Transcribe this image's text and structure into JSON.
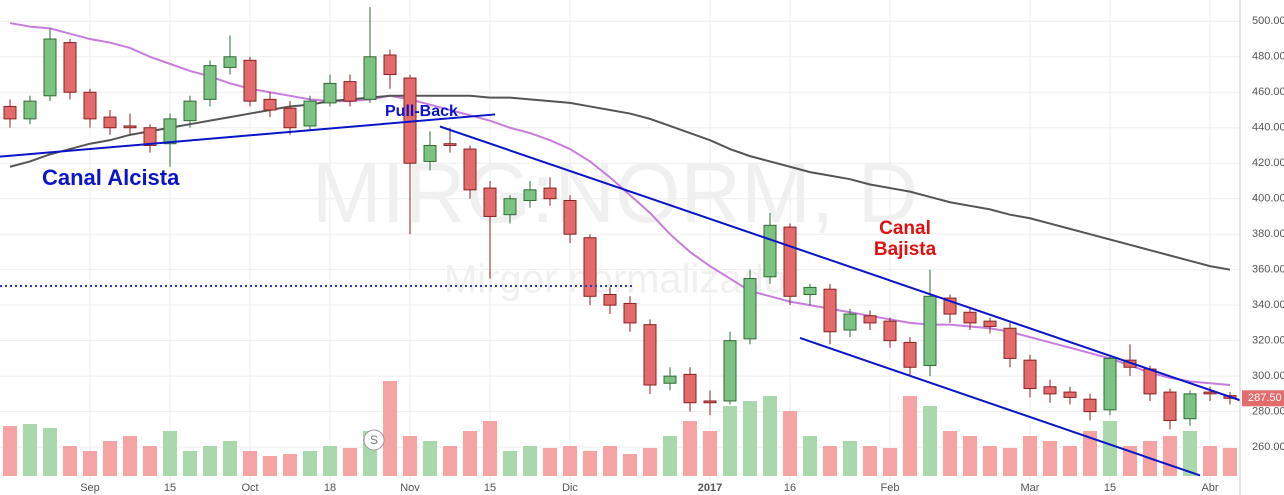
{
  "chart_data": {
    "type": "candlestick",
    "watermark": "MIRG:NORM, D",
    "subtitle": "Mirgor normalizado",
    "categories": [
      null,
      null,
      null,
      null,
      "Sep",
      null,
      null,
      null,
      "15",
      null,
      null,
      null,
      "Oct",
      null,
      null,
      null,
      "18",
      null,
      null,
      null,
      "Nov",
      null,
      null,
      null,
      "15",
      null,
      null,
      null,
      "Dic",
      null,
      null,
      null,
      null,
      null,
      null,
      "2017",
      null,
      null,
      null,
      "16",
      null,
      null,
      null,
      null,
      "Feb",
      null,
      null,
      null,
      null,
      null,
      null,
      "Mar",
      null,
      null,
      null,
      "15",
      null,
      null,
      null,
      null,
      "Abr",
      null
    ],
    "open": [
      452,
      445,
      458,
      488,
      460,
      446,
      441,
      440,
      431,
      444,
      456,
      474,
      478,
      456,
      451,
      441,
      454,
      466,
      456,
      481,
      468,
      421,
      431,
      428,
      406,
      391,
      399,
      406,
      399,
      378,
      346,
      341,
      329,
      296,
      301,
      286,
      286,
      321,
      356,
      384,
      346,
      349,
      326,
      334,
      331,
      319,
      306,
      344,
      336,
      331,
      327,
      309,
      294,
      291,
      287,
      281,
      309,
      304,
      291,
      276,
      291,
      289
    ],
    "high": [
      456,
      458,
      496,
      490,
      462,
      450,
      448,
      442,
      448,
      458,
      478,
      492,
      480,
      460,
      455,
      458,
      470,
      470,
      508,
      484,
      470,
      438,
      440,
      430,
      410,
      402,
      410,
      412,
      402,
      380,
      350,
      345,
      332,
      305,
      305,
      292,
      325,
      360,
      392,
      386,
      352,
      352,
      338,
      337,
      333,
      322,
      360,
      346,
      338,
      333,
      330,
      312,
      298,
      294,
      290,
      312,
      318,
      306,
      293,
      292,
      294,
      291
    ],
    "low": [
      440,
      442,
      455,
      456,
      440,
      436,
      436,
      426,
      418,
      440,
      452,
      470,
      452,
      446,
      436,
      438,
      452,
      452,
      454,
      462,
      380,
      416,
      426,
      400,
      355,
      386,
      395,
      396,
      375,
      340,
      335,
      325,
      290,
      292,
      280,
      278,
      284,
      318,
      352,
      340,
      340,
      318,
      322,
      326,
      316,
      300,
      300,
      330,
      326,
      324,
      305,
      288,
      285,
      284,
      275,
      278,
      300,
      286,
      270,
      272,
      286,
      284
    ],
    "close": [
      445,
      455,
      490,
      460,
      445,
      440,
      440,
      430,
      445,
      455,
      475,
      480,
      455,
      450,
      440,
      455,
      465,
      455,
      480,
      470,
      420,
      430,
      430,
      405,
      390,
      400,
      405,
      400,
      380,
      345,
      340,
      330,
      295,
      300,
      285,
      285,
      320,
      355,
      385,
      345,
      350,
      325,
      335,
      330,
      320,
      305,
      345,
      335,
      330,
      328,
      310,
      293,
      290,
      288,
      280,
      310,
      305,
      290,
      275,
      290,
      290,
      287.5
    ],
    "volume": [
      50,
      52,
      48,
      30,
      25,
      35,
      40,
      30,
      45,
      25,
      30,
      35,
      25,
      20,
      22,
      25,
      30,
      28,
      45,
      95,
      40,
      35,
      30,
      45,
      55,
      25,
      30,
      28,
      30,
      25,
      30,
      22,
      28,
      40,
      55,
      45,
      70,
      75,
      80,
      65,
      40,
      30,
      35,
      30,
      28,
      80,
      70,
      45,
      40,
      30,
      28,
      40,
      35,
      30,
      45,
      55,
      30,
      35,
      40,
      45,
      30,
      28
    ],
    "vlim": [
      0,
      100
    ],
    "up_color": "#7cc383",
    "down_color": "#e46b6b",
    "volume_up_color": "#a8d8ab",
    "volume_down_color": "#f5a3a3",
    "moving_averages": [
      {
        "color": "#c77ddb",
        "values": [
          499,
          497,
          496,
          493,
          490,
          488,
          485,
          480,
          476,
          472,
          469,
          465,
          462,
          460,
          458,
          456,
          455,
          455,
          456,
          458,
          456,
          453,
          450,
          447,
          444,
          440,
          437,
          433,
          428,
          421,
          412,
          402,
          392,
          380,
          370,
          362,
          355,
          348,
          345,
          342,
          340,
          338,
          336,
          334,
          332,
          330,
          329,
          329,
          328,
          327,
          325,
          322,
          319,
          316,
          313,
          310,
          306,
          302,
          299,
          297,
          296,
          295
        ]
      },
      {
        "color": "#555555",
        "values": [
          418,
          421,
          425,
          428,
          431,
          433,
          436,
          438,
          440,
          442,
          444,
          446,
          448,
          450,
          452,
          453,
          455,
          456,
          457,
          458,
          458,
          458,
          458,
          458,
          457,
          457,
          456,
          455,
          454,
          452,
          450,
          448,
          445,
          441,
          437,
          433,
          428,
          424,
          421,
          418,
          415,
          413,
          411,
          408,
          406,
          404,
          401,
          398,
          396,
          394,
          391,
          389,
          386,
          383,
          380,
          377,
          374,
          371,
          368,
          365,
          362,
          360
        ]
      }
    ],
    "trend_lines": [
      {
        "color": "#0a14c8",
        "x": [
          -0.5,
          24.25
        ],
        "y": [
          423.7,
          447.5
        ]
      },
      {
        "color": "#0a14c8",
        "x": [
          21.5,
          61.5
        ],
        "y": [
          440.7,
          286.4
        ]
      },
      {
        "color": "#0a14c8",
        "x": [
          39.5,
          59.5
        ],
        "y": [
          321.5,
          244
        ]
      }
    ],
    "reference_line": {
      "color": "#2a3ad0",
      "x": [
        -0.5,
        31.25
      ],
      "y": 350.8
    },
    "annotations": {
      "canal_alcista": "Canal Alcista",
      "pull_back": "Pull-Back",
      "canal": "Canal",
      "bajista": "Bajista"
    },
    "annotation_colors": {
      "up": "#0a14c8",
      "down": "#e01010"
    },
    "marker": "S",
    "last_price": {
      "value": 287.5,
      "label": "287.50"
    },
    "ylim": [
      233,
      512
    ],
    "yticks": [
      {
        "value": 260,
        "label": "260.00"
      },
      {
        "value": 280,
        "label": "280.00"
      },
      {
        "value": 300,
        "label": "300.00"
      },
      {
        "value": 320,
        "label": "320.00"
      },
      {
        "value": 340,
        "label": "340.00"
      },
      {
        "value": 360,
        "label": "360.00"
      },
      {
        "value": 380,
        "label": "380.00"
      },
      {
        "value": 400,
        "label": "400.00"
      },
      {
        "value": 420,
        "label": "420.00"
      },
      {
        "value": 440,
        "label": "440.00"
      },
      {
        "value": 460,
        "label": "460.00"
      },
      {
        "value": 480,
        "label": "480.00"
      },
      {
        "value": 500,
        "label": "500.00"
      }
    ],
    "grid": true
  }
}
